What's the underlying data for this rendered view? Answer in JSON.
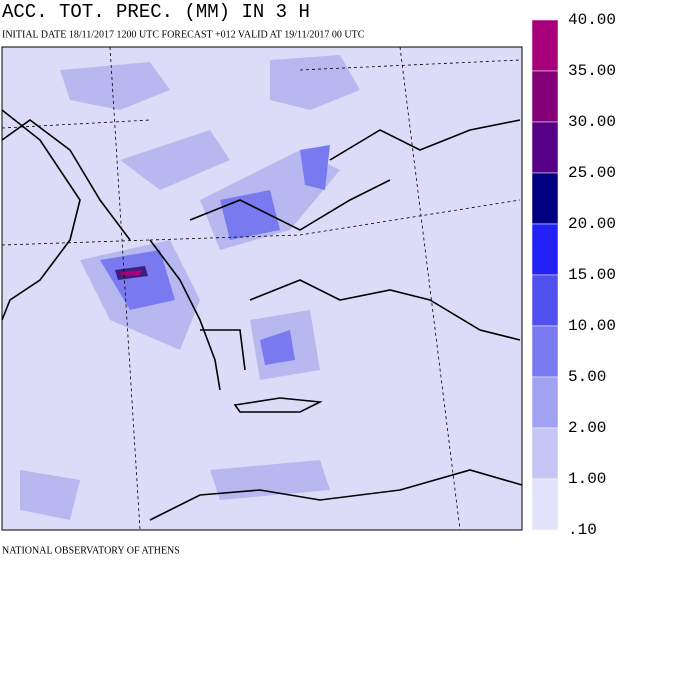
{
  "header": {
    "title": "ACC. TOT. PREC. (MM) IN 3 H",
    "subtitle": "INITIAL DATE 18/11/2017   1200 UTC  FORECAST +012 VALID AT  19/11/2017  00 UTC"
  },
  "footer": "NATIONAL OBSERVATORY OF ATHENS",
  "legend": {
    "labels": [
      "40.00",
      "35.00",
      "30.00",
      "25.00",
      "20.00",
      "15.00",
      "10.00",
      "5.00",
      "2.00",
      "1.00",
      ".10"
    ],
    "colors": [
      "#a8007a",
      "#840078",
      "#560088",
      "#000080",
      "#2222f8",
      "#5050ee",
      "#7a7af0",
      "#a2a2f2",
      "#c6c6f6",
      "#e2e2fa"
    ]
  }
}
